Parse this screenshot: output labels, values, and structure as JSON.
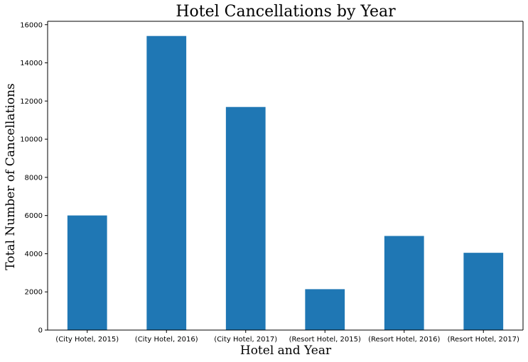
{
  "chart_data": {
    "type": "bar",
    "title": "Hotel Cancellations by Year",
    "xlabel": "Hotel and Year",
    "ylabel": "Total Number of Cancellations",
    "categories": [
      "(City Hotel, 2015)",
      "(City Hotel, 2016)",
      "(City Hotel, 2017)",
      "(Resort Hotel, 2015)",
      "(Resort Hotel, 2016)",
      "(Resort Hotel, 2017)"
    ],
    "values": [
      6004,
      15407,
      11688,
      2142,
      4930,
      4048
    ],
    "ylim": [
      0,
      16177
    ],
    "yticks": [
      0,
      2000,
      4000,
      6000,
      8000,
      10000,
      12000,
      14000,
      16000
    ],
    "bar_color": "#1f77b4",
    "grid": false,
    "legend": false
  }
}
